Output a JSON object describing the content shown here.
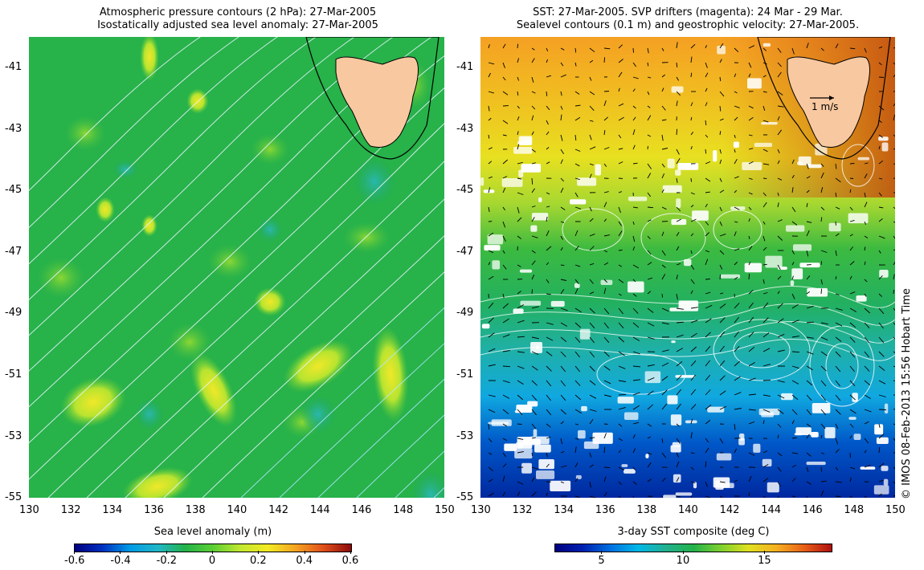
{
  "left_map": {
    "title_line1": "Atmospheric pressure contours (2 hPa): 27-Mar-2005",
    "title_line2": "Isostatically adjusted sea level anomaly: 27-Mar-2005",
    "colorbar": {
      "label": "Sea level anomaly (m)",
      "ticks": [
        "-0.6",
        "-0.4",
        "-0.2",
        "0",
        "0.2",
        "0.4",
        "0.6"
      ],
      "colors": [
        "#000080",
        "#0030c0",
        "#009be6",
        "#22b6c8",
        "#23b24a",
        "#5ccf35",
        "#c3e830",
        "#f2ea23",
        "#f5a320",
        "#e0501c",
        "#8c0a0a"
      ]
    },
    "background_color": "#27b24a",
    "land_color": "#f8c8a0"
  },
  "right_map": {
    "title_line1": "SST: 27-Mar-2005. SVP drifters (magenta): 24 Mar - 29 Mar.",
    "title_line2": "Sealevel contours (0.1 m) and geostrophic velocity: 27-Mar-2005.",
    "velocity_scale_label": "1 m/s",
    "colorbar": {
      "label": "3-day SST composite (deg C)",
      "ticks": [
        "5",
        "10",
        "15"
      ],
      "colors": [
        "#000080",
        "#0020b0",
        "#0070e0",
        "#00b8e8",
        "#22b090",
        "#23b24a",
        "#7fd030",
        "#e0e020",
        "#f5b020",
        "#e86018",
        "#b01010"
      ]
    },
    "land_color": "#f8c8a0"
  },
  "axes": {
    "x_ticks": [
      "130",
      "132",
      "134",
      "136",
      "138",
      "140",
      "142",
      "144",
      "146",
      "148",
      "150"
    ],
    "y_ticks": [
      "-41",
      "-43",
      "-45",
      "-47",
      "-49",
      "-51",
      "-53",
      "-55"
    ]
  },
  "copyright": "© IMOS 08-Feb-2013 15:56 Hobart Time"
}
